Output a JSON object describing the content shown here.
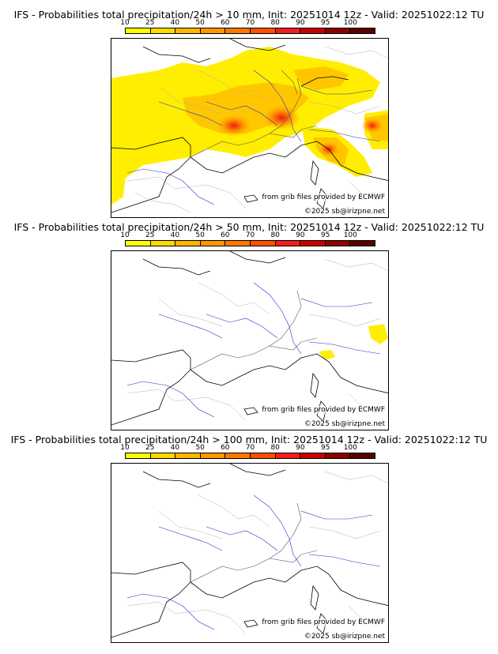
{
  "colorbar": {
    "ticks": [
      "10",
      "25",
      "40",
      "50",
      "60",
      "70",
      "80",
      "90",
      "95",
      "100"
    ],
    "colors": [
      "#ffff00",
      "#ffd800",
      "#ffb400",
      "#ff9600",
      "#ff7800",
      "#ff5000",
      "#f01e1e",
      "#c80000",
      "#8c0000",
      "#5a0000"
    ]
  },
  "credits": {
    "source": "from grib files provided by ECMWF",
    "copyright": "©2025 sb@irizpne.net"
  },
  "panels": [
    {
      "title": "IFS - Probabilities total precipitation/24h > 10 mm, Init: 20251014 12z - Valid: 20251022:12 TU",
      "threshold_mm": 10,
      "coverage": "extensive"
    },
    {
      "title": "IFS - Probabilities total precipitation/24h > 50 mm, Init: 20251014 12z - Valid: 20251022:12 TU",
      "threshold_mm": 50,
      "coverage": "sparse"
    },
    {
      "title": "IFS - Probabilities total precipitation/24h > 100 mm, Init: 20251014 12z - Valid: 20251022:12 TU",
      "threshold_mm": 100,
      "coverage": "none"
    }
  ]
}
